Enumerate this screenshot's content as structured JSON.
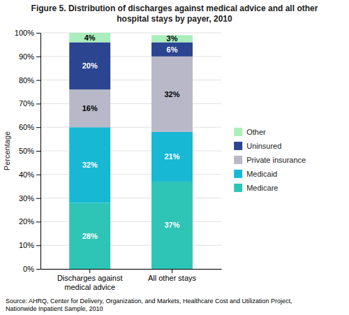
{
  "chart_data": {
    "type": "bar",
    "stacked": true,
    "title": "Figure 5. Distribution of discharges against medical advice and all other\nhospital stays by payer, 2010",
    "categories": [
      "Discharges against\nmedical advice",
      "All other stays"
    ],
    "series": [
      {
        "name": "Medicare",
        "color": "#2EC4B6",
        "values": [
          28,
          37
        ],
        "value_labels": [
          "28%",
          "37%"
        ]
      },
      {
        "name": "Medicaid",
        "color": "#17B8D4",
        "values": [
          32,
          21
        ],
        "value_labels": [
          "32%",
          "21%"
        ]
      },
      {
        "name": "Private insurance",
        "color": "#B8B8C8",
        "values": [
          16,
          32
        ],
        "value_labels": [
          "16%",
          "32%"
        ]
      },
      {
        "name": "Uninsured",
        "color": "#2B4590",
        "values": [
          20,
          6
        ],
        "value_labels": [
          "20%",
          "6%"
        ]
      },
      {
        "name": "Other",
        "color": "#AAEEBB",
        "values": [
          4,
          3
        ],
        "value_labels": [
          "4%",
          "3%"
        ]
      }
    ],
    "ylabel": "Percentage",
    "ylim": [
      0,
      100
    ],
    "yticks": [
      {
        "value": 0,
        "label": "0%"
      },
      {
        "value": 10,
        "label": "10%"
      },
      {
        "value": 20,
        "label": "20%"
      },
      {
        "value": 30,
        "label": "30%"
      },
      {
        "value": 40,
        "label": "40%"
      },
      {
        "value": 50,
        "label": "50%"
      },
      {
        "value": 60,
        "label": "60%"
      },
      {
        "value": 70,
        "label": "70%"
      },
      {
        "value": 80,
        "label": "80%"
      },
      {
        "value": 90,
        "label": "90%"
      },
      {
        "value": 100,
        "label": "100%"
      }
    ],
    "grid": true,
    "data_labels": true,
    "legend": "right",
    "annotations": [
      "Source: AHRQ, Center for Delivery, Organization, and Markets, Healthcare Cost and Utilization Project,\nNationwide Inpatient Sample, 2010"
    ]
  }
}
